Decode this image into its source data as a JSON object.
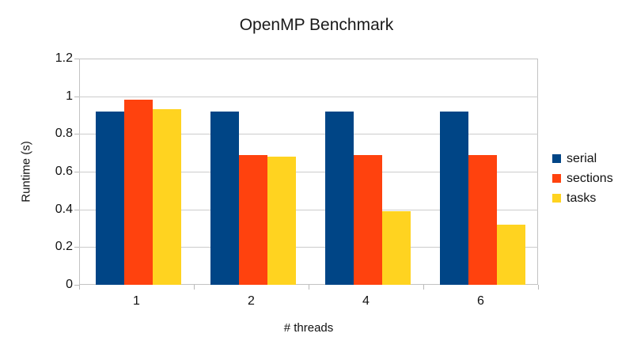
{
  "chart_data": {
    "type": "bar",
    "title": "OpenMP Benchmark",
    "xlabel": "# threads",
    "ylabel": "Runtime (s)",
    "categories": [
      "1",
      "2",
      "4",
      "6"
    ],
    "series": [
      {
        "name": "serial",
        "color": "#004586",
        "values": [
          0.92,
          0.92,
          0.92,
          0.92
        ]
      },
      {
        "name": "sections",
        "color": "#FF420E",
        "values": [
          0.98,
          0.69,
          0.69,
          0.69
        ]
      },
      {
        "name": "tasks",
        "color": "#FFD320",
        "values": [
          0.93,
          0.68,
          0.39,
          0.32
        ]
      }
    ],
    "ylim": [
      0,
      1.2
    ],
    "ytick_step": 0.2,
    "ytick_labels": [
      "0",
      "0.2",
      "0.4",
      "0.6",
      "0.8",
      "1",
      "1.2"
    ],
    "grid": true,
    "legend_position": "right"
  },
  "colors": {
    "grid": "#cccccc",
    "plot_border": "#c3c3c3",
    "text": "#111111",
    "background": "#ffffff"
  }
}
